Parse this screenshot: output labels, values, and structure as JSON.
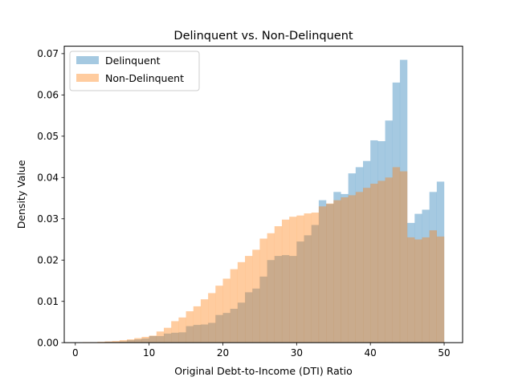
{
  "chart_data": {
    "type": "bar",
    "title": "Delinquent vs. Non-Delinquent",
    "xlabel": "Original Debt-to-Income (DTI) Ratio",
    "ylabel": "Density Value",
    "xlim": [
      -1.5,
      52.5
    ],
    "ylim": [
      0,
      0.0718
    ],
    "xticks": [
      0,
      10,
      20,
      30,
      40,
      50
    ],
    "yticks": [
      0.0,
      0.01,
      0.02,
      0.03,
      0.04,
      0.05,
      0.06,
      0.07
    ],
    "ytick_labels": [
      "0.00",
      "0.01",
      "0.02",
      "0.03",
      "0.04",
      "0.05",
      "0.06",
      "0.07"
    ],
    "legend_position": "top-left",
    "bin_start": 1,
    "bin_width": 1,
    "series": [
      {
        "name": "Delinquent",
        "color": "#1f77b4",
        "alpha": 0.4,
        "values": [
          0.0,
          0.0001,
          0.0001,
          0.0002,
          0.0002,
          0.0003,
          0.0006,
          0.0008,
          0.001,
          0.0016,
          0.0016,
          0.0022,
          0.0024,
          0.0025,
          0.004,
          0.0043,
          0.0044,
          0.0048,
          0.0067,
          0.0072,
          0.0082,
          0.0097,
          0.0122,
          0.0131,
          0.016,
          0.02,
          0.021,
          0.0212,
          0.021,
          0.0245,
          0.026,
          0.0285,
          0.0345,
          0.0336,
          0.0365,
          0.036,
          0.041,
          0.0425,
          0.044,
          0.049,
          0.0488,
          0.0538,
          0.063,
          0.0685,
          0.029,
          0.0312,
          0.0322,
          0.0365,
          0.039
        ]
      },
      {
        "name": "Non-Delinquent",
        "color": "#ff7f0e",
        "alpha": 0.4,
        "values": [
          0.0001,
          0.0001,
          0.0002,
          0.0003,
          0.0004,
          0.0006,
          0.0008,
          0.0011,
          0.0014,
          0.0017,
          0.0027,
          0.0036,
          0.0052,
          0.0061,
          0.0076,
          0.0088,
          0.0105,
          0.012,
          0.0138,
          0.0155,
          0.0178,
          0.0195,
          0.021,
          0.0225,
          0.0252,
          0.0265,
          0.0282,
          0.0298,
          0.0305,
          0.0308,
          0.0313,
          0.0315,
          0.033,
          0.0337,
          0.0345,
          0.0352,
          0.0357,
          0.0365,
          0.0375,
          0.0385,
          0.0392,
          0.04,
          0.0425,
          0.0415,
          0.0255,
          0.025,
          0.0255,
          0.0272,
          0.0257
        ]
      }
    ]
  }
}
